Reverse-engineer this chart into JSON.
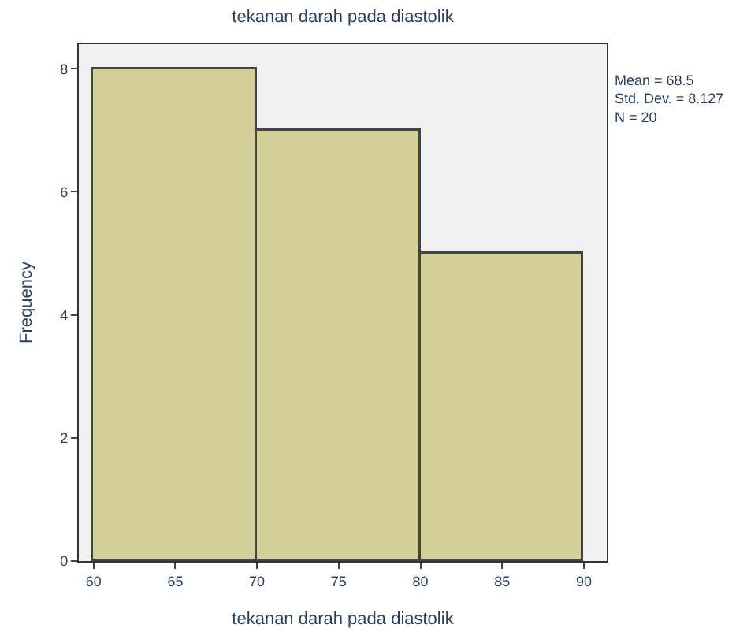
{
  "chart_data": {
    "type": "histogram",
    "title": "tekanan darah pada diastolik",
    "xlabel": "tekanan darah pada diastolik",
    "ylabel": "Frequency",
    "bins": [
      60,
      70,
      80,
      90
    ],
    "values": [
      8,
      7,
      5
    ],
    "color": "#d3cf98",
    "xlim": [
      59.1,
      91.4
    ],
    "xticks": [
      60,
      65,
      70,
      75,
      80,
      85,
      90
    ],
    "ylim": [
      0,
      8.4
    ],
    "yticks": [
      0,
      2,
      4,
      6,
      8
    ],
    "grid": false,
    "annotations": [
      "Mean = 68.5\nStd. Dev. = 8.127\nN = 20"
    ]
  }
}
